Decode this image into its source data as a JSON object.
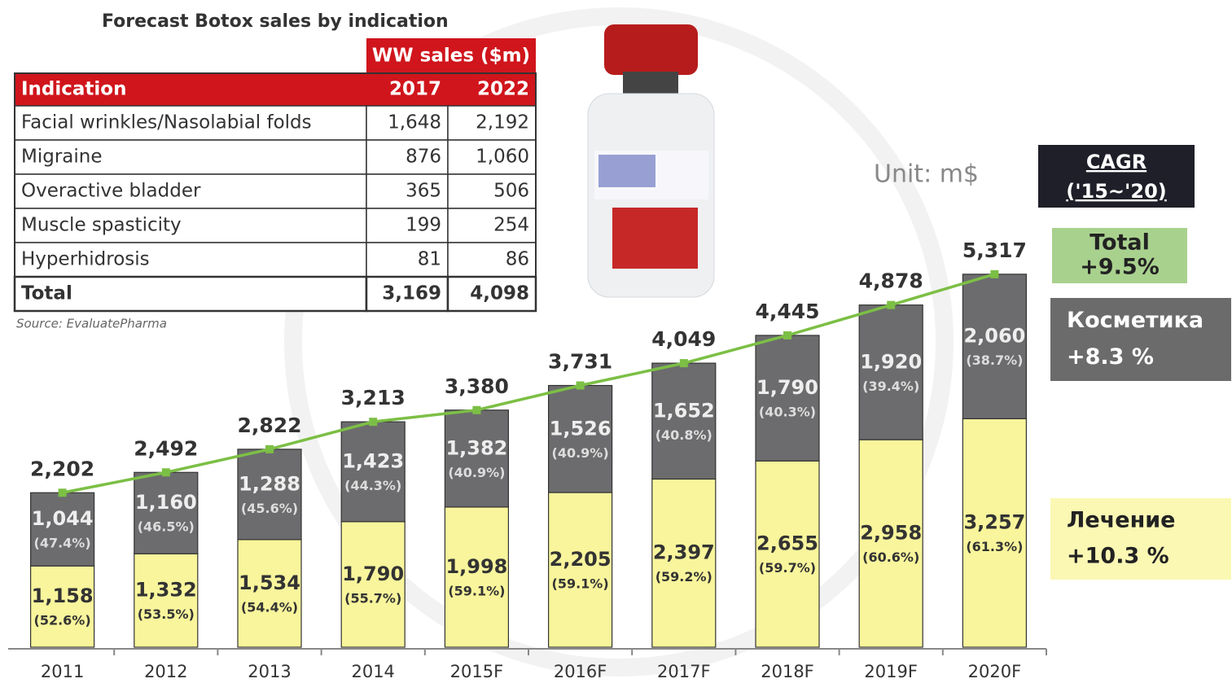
{
  "table": {
    "title": "Forecast Botox sales by indication",
    "group_header": "WW sales ($m)",
    "columns": [
      "Indication",
      "2017",
      "2022"
    ],
    "rows": [
      [
        "Facial wrinkles/Nasolabial folds",
        "1,648",
        "2,192"
      ],
      [
        "Migraine",
        "876",
        "1,060"
      ],
      [
        "Overactive bladder",
        "365",
        "506"
      ],
      [
        "Muscle spasticity",
        "199",
        "254"
      ],
      [
        "Hyperhidrosis",
        "81",
        "86"
      ],
      [
        "Total",
        "3,169",
        "4,098"
      ]
    ],
    "source": "Source: EvaluatePharma"
  },
  "chart_data": {
    "type": "bar",
    "stacked": true,
    "categories": [
      "2011",
      "2012",
      "2013",
      "2014",
      "2015F",
      "2016F",
      "2017F",
      "2018F",
      "2019F",
      "2020F"
    ],
    "ylim": [
      0,
      6000
    ],
    "unit_note": "Unit: m$",
    "cagr_title": "CAGR",
    "cagr_period": "('15~'20)",
    "series": [
      {
        "name": "Лечение",
        "kind": "bar",
        "color": "#f8f59c",
        "cagr": "+10.3 %",
        "values": [
          1158,
          1332,
          1534,
          1790,
          1998,
          2205,
          2397,
          2655,
          2958,
          3257
        ],
        "value_labels": [
          "1,158",
          "1,332",
          "1,534",
          "1,790",
          "1,998",
          "2,205",
          "2,397",
          "2,655",
          "2,958",
          "3,257"
        ],
        "share_labels": [
          "(52.6%)",
          "(53.5%)",
          "(54.4%)",
          "(55.7%)",
          "(59.1%)",
          "(59.1%)",
          "(59.2%)",
          "(59.7%)",
          "(60.6%)",
          "(61.3%)"
        ]
      },
      {
        "name": "Косметика",
        "kind": "bar",
        "color": "#6c6c6e",
        "cagr": "+8.3 %",
        "values": [
          1044,
          1160,
          1288,
          1423,
          1382,
          1526,
          1652,
          1790,
          1920,
          2060
        ],
        "value_labels": [
          "1,044",
          "1,160",
          "1,288",
          "1,423",
          "1,382",
          "1,526",
          "1,652",
          "1,790",
          "1,920",
          "2,060"
        ],
        "share_labels": [
          "(47.4%)",
          "(46.5%)",
          "(45.6%)",
          "(44.3%)",
          "(40.9%)",
          "(40.9%)",
          "(40.8%)",
          "(40.3%)",
          "(39.4%)",
          "(38.7%)"
        ]
      },
      {
        "name": "Total",
        "kind": "line",
        "color": "#7cbf45",
        "cagr": "+9.5%",
        "values": [
          2202,
          2492,
          2822,
          3213,
          3380,
          3731,
          4049,
          4445,
          4878,
          5317
        ],
        "value_labels": [
          "2,202",
          "2,492",
          "2,822",
          "3,213",
          "3,380",
          "3,731",
          "4,049",
          "4,445",
          "4,878",
          "5,317"
        ]
      }
    ]
  }
}
